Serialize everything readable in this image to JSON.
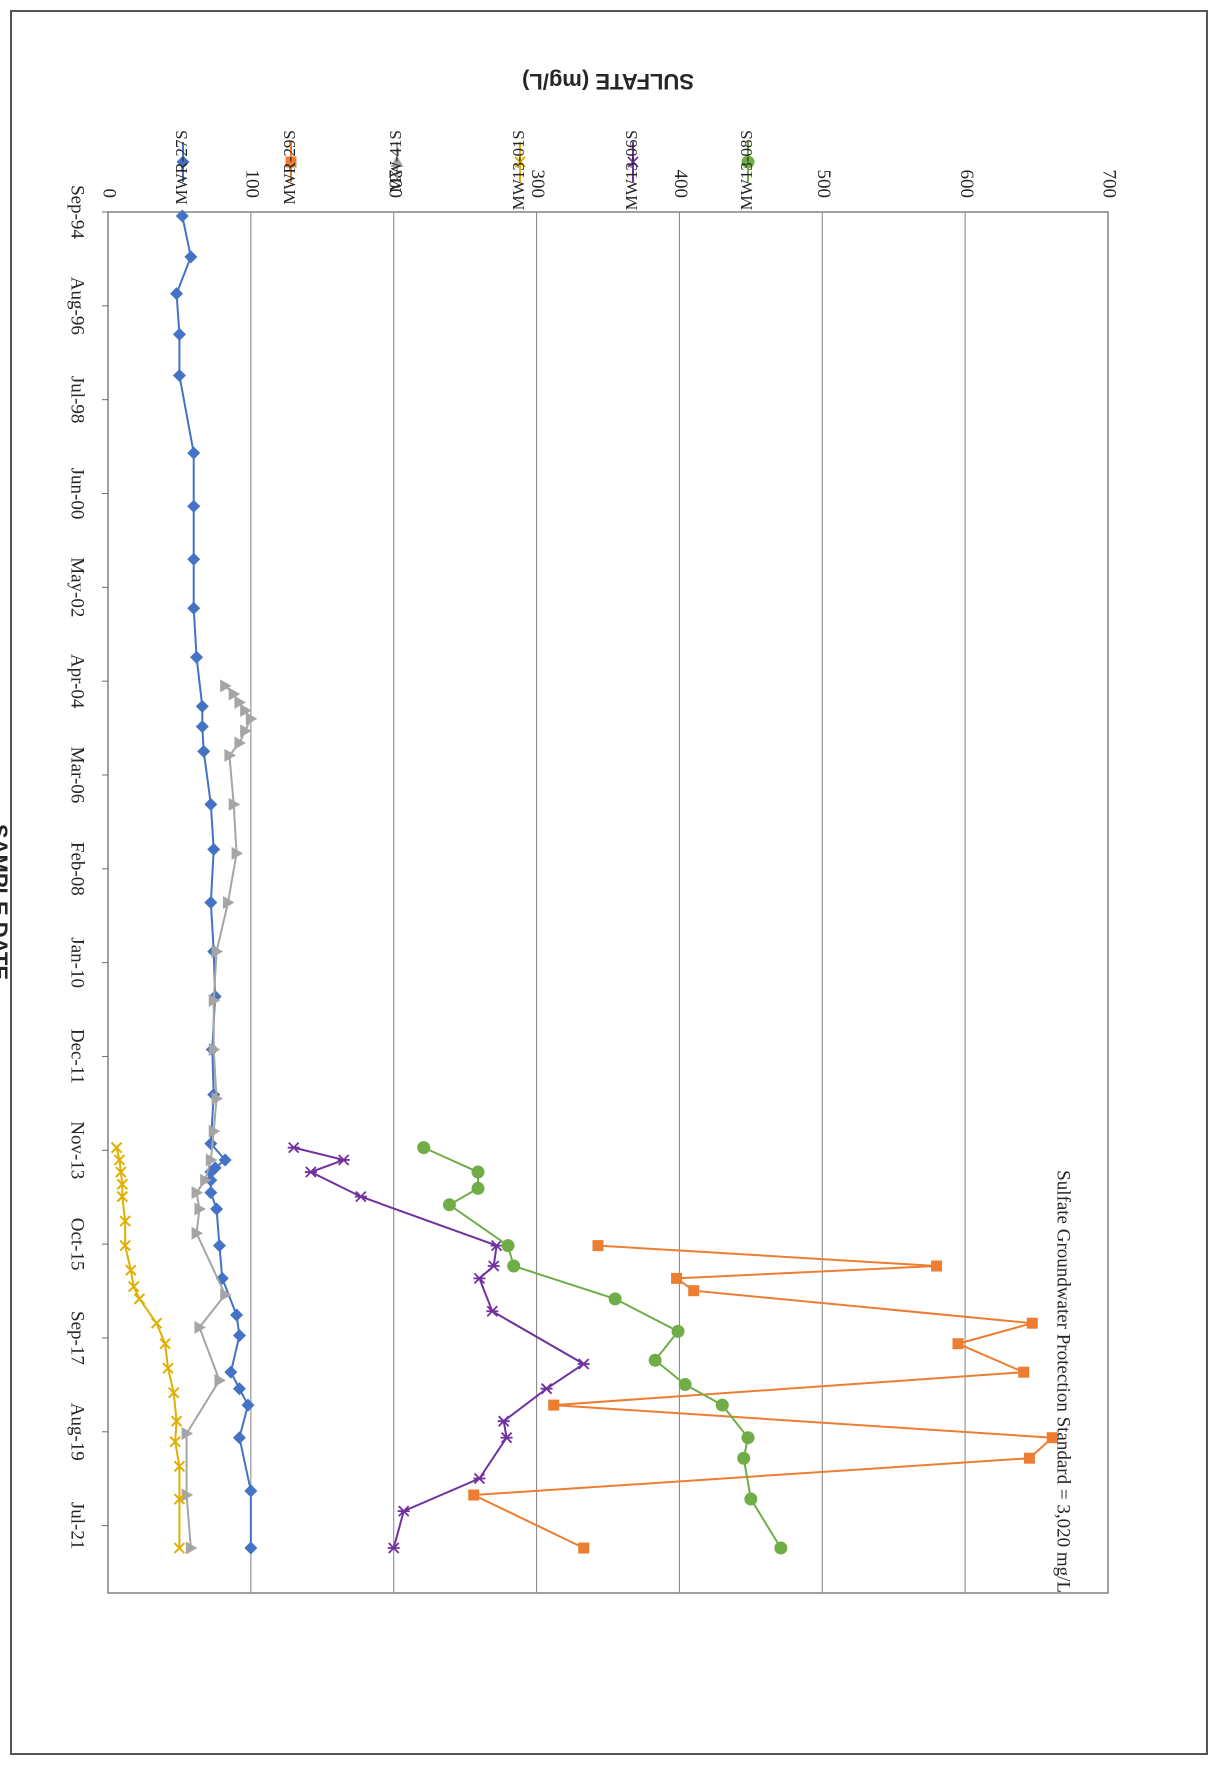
{
  "chart_data": {
    "type": "line",
    "orientation": "rotated-90-clockwise",
    "xlabel": "SAMPLE DATE",
    "ylabel": "SULFATE (mg/L)",
    "annotation": "Sulfate Groundwater Protection Standard = 3,020 mg/L",
    "x_ticks": [
      "Sep-94",
      "Aug-96",
      "Jul-98",
      "Jun-00",
      "May-02",
      "Apr-04",
      "Mar-06",
      "Feb-08",
      "Jan-10",
      "Dec-11",
      "Nov-13",
      "Oct-15",
      "Sep-17",
      "Aug-19",
      "Jul-21"
    ],
    "y_ticks": [
      0,
      100,
      200,
      300,
      400,
      500,
      600,
      700
    ],
    "ylim": [
      0,
      700
    ],
    "xlim": [
      "1994-09-01",
      "2022-11-01"
    ],
    "gridlines": "horizontal",
    "legend_position": "top",
    "series": [
      {
        "name": "MWR-27S",
        "color": "#4472c4",
        "marker": "diamond",
        "points": [
          [
            "1994-10-01",
            52
          ],
          [
            "1995-08-01",
            58
          ],
          [
            "1996-05-01",
            48
          ],
          [
            "1997-03-01",
            50
          ],
          [
            "1998-01-01",
            50
          ],
          [
            "1999-08-01",
            60
          ],
          [
            "2000-09-01",
            60
          ],
          [
            "2001-10-01",
            60
          ],
          [
            "2002-10-01",
            60
          ],
          [
            "2003-10-01",
            62
          ],
          [
            "2004-10-01",
            66
          ],
          [
            "2005-03-01",
            66
          ],
          [
            "2005-09-01",
            67
          ],
          [
            "2006-10-01",
            72
          ],
          [
            "2007-09-01",
            74
          ],
          [
            "2008-10-01",
            72
          ],
          [
            "2009-10-01",
            74
          ],
          [
            "2010-09-01",
            75
          ],
          [
            "2011-10-01",
            73
          ],
          [
            "2012-09-01",
            74
          ],
          [
            "2013-09-01",
            72
          ],
          [
            "2014-01-01",
            82
          ],
          [
            "2014-03-01",
            75
          ],
          [
            "2014-04-01",
            72
          ],
          [
            "2014-06-01",
            72
          ],
          [
            "2014-09-01",
            72
          ],
          [
            "2015-01-01",
            76
          ],
          [
            "2015-10-01",
            78
          ],
          [
            "2016-06-01",
            80
          ],
          [
            "2017-03-01",
            90
          ],
          [
            "2017-08-01",
            92
          ],
          [
            "2018-05-01",
            86
          ],
          [
            "2018-09-01",
            92
          ],
          [
            "2019-01-01",
            98
          ],
          [
            "2019-09-01",
            92
          ],
          [
            "2020-10-01",
            100
          ],
          [
            "2021-12-01",
            100
          ]
        ]
      },
      {
        "name": "MWR-29S",
        "color": "#ed7d31",
        "marker": "square",
        "points": [
          [
            "2015-10-01",
            343
          ],
          [
            "2016-03-01",
            580
          ],
          [
            "2016-06-01",
            398
          ],
          [
            "2016-09-01",
            410
          ],
          [
            "2017-05-01",
            647
          ],
          [
            "2017-10-01",
            595
          ],
          [
            "2018-05-01",
            641
          ],
          [
            "2019-01-01",
            312
          ],
          [
            "2019-09-01",
            661
          ],
          [
            "2020-02-01",
            645
          ],
          [
            "2020-11-01",
            256
          ],
          [
            "2021-12-01",
            333
          ]
        ]
      },
      {
        "name": "MW-41S",
        "color": "#a5a5a5",
        "marker": "triangle",
        "points": [
          [
            "2004-05-01",
            82
          ],
          [
            "2004-07-01",
            88
          ],
          [
            "2004-09-01",
            92
          ],
          [
            "2004-11-01",
            96
          ],
          [
            "2005-01-01",
            100
          ],
          [
            "2005-04-01",
            96
          ],
          [
            "2005-07-01",
            92
          ],
          [
            "2005-10-01",
            85
          ],
          [
            "2006-10-01",
            88
          ],
          [
            "2007-10-01",
            90
          ],
          [
            "2008-10-01",
            84
          ],
          [
            "2009-10-01",
            76
          ],
          [
            "2010-10-01",
            74
          ],
          [
            "2011-10-01",
            74
          ],
          [
            "2012-10-01",
            76
          ],
          [
            "2013-06-01",
            74
          ],
          [
            "2014-01-01",
            72
          ],
          [
            "2014-06-01",
            68
          ],
          [
            "2014-09-01",
            62
          ],
          [
            "2015-01-01",
            64
          ],
          [
            "2015-07-01",
            62
          ],
          [
            "2016-10-01",
            82
          ],
          [
            "2017-06-01",
            64
          ],
          [
            "2018-07-01",
            78
          ],
          [
            "2019-08-01",
            55
          ],
          [
            "2020-11-01",
            55
          ],
          [
            "2021-12-01",
            58
          ]
        ]
      },
      {
        "name": "MW13-01S",
        "color": "#e0b000",
        "marker": "x",
        "points": [
          [
            "2013-10-01",
            6
          ],
          [
            "2014-01-01",
            8
          ],
          [
            "2014-04-01",
            9
          ],
          [
            "2014-07-01",
            10
          ],
          [
            "2014-10-01",
            10
          ],
          [
            "2015-04-01",
            12
          ],
          [
            "2015-10-01",
            12
          ],
          [
            "2016-04-01",
            16
          ],
          [
            "2016-08-01",
            18
          ],
          [
            "2016-11-01",
            22
          ],
          [
            "2017-05-01",
            34
          ],
          [
            "2017-10-01",
            40
          ],
          [
            "2018-04-01",
            42
          ],
          [
            "2018-10-01",
            46
          ],
          [
            "2019-05-01",
            48
          ],
          [
            "2019-10-01",
            47
          ],
          [
            "2020-04-01",
            50
          ],
          [
            "2020-12-01",
            50
          ],
          [
            "2021-12-01",
            50
          ]
        ]
      },
      {
        "name": "MW13-06S",
        "color": "#7030a0",
        "marker": "star",
        "points": [
          [
            "2013-10-01",
            130
          ],
          [
            "2014-01-01",
            165
          ],
          [
            "2014-04-01",
            142
          ],
          [
            "2014-10-01",
            177
          ],
          [
            "2015-10-01",
            272
          ],
          [
            "2016-03-01",
            270
          ],
          [
            "2016-06-01",
            260
          ],
          [
            "2017-02-01",
            269
          ],
          [
            "2018-03-01",
            333
          ],
          [
            "2018-09-01",
            307
          ],
          [
            "2019-05-01",
            277
          ],
          [
            "2019-09-01",
            279
          ],
          [
            "2020-07-01",
            260
          ],
          [
            "2021-03-01",
            207
          ],
          [
            "2021-12-01",
            200
          ]
        ]
      },
      {
        "name": "MW13-08S",
        "color": "#70ad47",
        "marker": "circle",
        "points": [
          [
            "2013-10-01",
            221
          ],
          [
            "2014-04-01",
            259
          ],
          [
            "2014-08-01",
            259
          ],
          [
            "2014-12-01",
            239
          ],
          [
            "2015-10-01",
            280
          ],
          [
            "2016-03-01",
            284
          ],
          [
            "2016-11-01",
            355
          ],
          [
            "2017-07-01",
            399
          ],
          [
            "2018-02-01",
            383
          ],
          [
            "2018-08-01",
            404
          ],
          [
            "2019-01-01",
            430
          ],
          [
            "2019-09-01",
            448
          ],
          [
            "2020-02-01",
            445
          ],
          [
            "2020-12-01",
            450
          ],
          [
            "2021-12-01",
            471
          ]
        ]
      }
    ]
  }
}
